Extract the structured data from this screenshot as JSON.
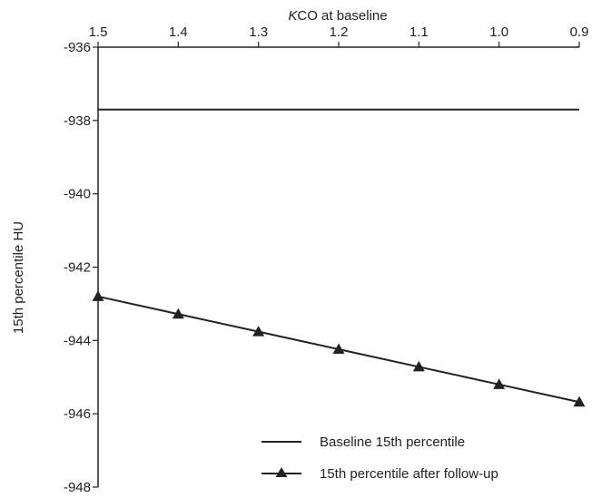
{
  "chart_data": {
    "type": "line",
    "title": "",
    "xlabel_italic": "K",
    "xlabel_rest": "CO at baseline",
    "ylabel": "15th percentile HU",
    "x": [
      1.5,
      1.4,
      1.3,
      1.2,
      1.1,
      1.0,
      0.9
    ],
    "x_tick_labels": [
      "1.5",
      "1.4",
      "1.3",
      "1.2",
      "1.1",
      "1.0",
      "0.9"
    ],
    "xlim": [
      1.5,
      0.9
    ],
    "ylim": [
      -948,
      -936
    ],
    "y_ticks": [
      -936,
      -938,
      -940,
      -942,
      -944,
      -946,
      -948
    ],
    "y_tick_labels": [
      "-936",
      "-938",
      "-940",
      "-942",
      "-944",
      "-946",
      "-948"
    ],
    "series": [
      {
        "name": "Baseline 15th percentile",
        "marker": "none",
        "values": [
          -937.7,
          -937.7,
          -937.7,
          -937.7,
          -937.7,
          -937.7,
          -937.7
        ]
      },
      {
        "name": "15th percentile after follow-up",
        "marker": "triangle",
        "values": [
          -942.8,
          -943.28,
          -943.76,
          -944.24,
          -944.72,
          -945.2,
          -945.68
        ]
      }
    ],
    "legend_position": "bottom-right",
    "grid": false,
    "line_color": "#222222"
  }
}
